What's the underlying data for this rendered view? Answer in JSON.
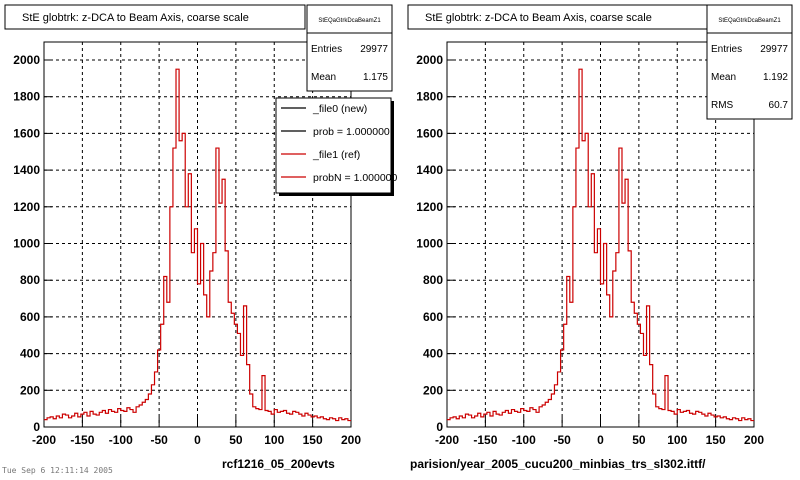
{
  "footer": {
    "left_path": "rcf1216_05_200evts",
    "right_path": "parision/year_2005_cucu200_minbias_trs_sl302.ittf/",
    "tiny_text": "Tue Sep 6 12:11:14 2005"
  },
  "chart_data": [
    {
      "type": "histogram",
      "title": "StE globtrk: z-DCA to Beam Axis, coarse scale",
      "xlim": [
        -200,
        200
      ],
      "ylim": [
        0,
        2000
      ],
      "x_ticks": [
        "-200",
        "-150",
        "-100",
        "-50",
        "0",
        "50",
        "100",
        "150",
        "200"
      ],
      "y_ticks": [
        "0",
        "200",
        "400",
        "600",
        "800",
        "1000",
        "1200",
        "1400",
        "1600",
        "1800",
        "2000"
      ],
      "grid": true,
      "bin_width": 4,
      "x_start": -200,
      "stats": {
        "name": "StEQaGtrkDcaBeamZ1",
        "rows": [
          {
            "label": "Entries",
            "value": "29977"
          },
          {
            "label": "Mean",
            "value": "1.175"
          }
        ]
      },
      "legend": {
        "placement": "top-right",
        "entries": [
          {
            "label": "_file0 (new)",
            "color": "#000000"
          },
          {
            "label": "prob = 1.000000",
            "color": "#000000"
          },
          {
            "label": "_file1 (ref)",
            "color": "#cc0000"
          },
          {
            "label": "probN = 1.000000",
            "color": "#cc0000"
          }
        ]
      },
      "series": [
        {
          "color": "#cc0000",
          "values": [
            40,
            50,
            55,
            45,
            60,
            50,
            70,
            65,
            50,
            60,
            75,
            55,
            70,
            80,
            60,
            85,
            70,
            65,
            80,
            90,
            75,
            95,
            85,
            80,
            100,
            90,
            85,
            105,
            95,
            80,
            110,
            120,
            135,
            150,
            180,
            230,
            300,
            420,
            560,
            820,
            680,
            1200,
            1520,
            1950,
            1560,
            1600,
            1200,
            1380,
            950,
            1080,
            780,
            1000,
            720,
            600,
            850,
            950,
            1520,
            1220,
            1350,
            960,
            680,
            620,
            560,
            510,
            390,
            660,
            340,
            180,
            110,
            100,
            95,
            280,
            90,
            85,
            70,
            95,
            80,
            85,
            90,
            75,
            70,
            85,
            80,
            70,
            60,
            75,
            65,
            55,
            60,
            50,
            55,
            45,
            40,
            50,
            45,
            35,
            50,
            40,
            45,
            35
          ]
        }
      ]
    },
    {
      "type": "histogram",
      "title": "StE globtrk: z-DCA to Beam Axis, coarse scale",
      "xlim": [
        -200,
        200
      ],
      "ylim": [
        0,
        2000
      ],
      "x_ticks": [
        "-200",
        "-150",
        "-100",
        "-50",
        "0",
        "50",
        "100",
        "150",
        "200"
      ],
      "y_ticks": [
        "0",
        "200",
        "400",
        "600",
        "800",
        "1000",
        "1200",
        "1400",
        "1600",
        "1800",
        "2000"
      ],
      "grid": true,
      "bin_width": 4,
      "x_start": -200,
      "stats": {
        "name": "StEQaGtrkDcaBeamZ1",
        "rows": [
          {
            "label": "Entries",
            "value": "29977"
          },
          {
            "label": "Mean",
            "value": "1.192"
          },
          {
            "label": "RMS",
            "value": "60.7"
          }
        ]
      },
      "series": [
        {
          "color": "#cc0000",
          "values": [
            40,
            50,
            55,
            45,
            60,
            50,
            70,
            65,
            50,
            60,
            75,
            55,
            70,
            80,
            60,
            85,
            70,
            65,
            80,
            90,
            75,
            95,
            85,
            80,
            100,
            90,
            85,
            105,
            95,
            80,
            110,
            120,
            135,
            150,
            180,
            230,
            300,
            420,
            560,
            820,
            680,
            1200,
            1520,
            1950,
            1560,
            1600,
            1200,
            1380,
            950,
            1080,
            780,
            1000,
            720,
            600,
            850,
            950,
            1520,
            1220,
            1350,
            960,
            680,
            620,
            560,
            510,
            390,
            660,
            340,
            180,
            110,
            100,
            95,
            280,
            90,
            85,
            70,
            95,
            80,
            85,
            90,
            75,
            70,
            85,
            80,
            70,
            60,
            75,
            65,
            55,
            60,
            50,
            55,
            45,
            40,
            50,
            45,
            35,
            50,
            40,
            45,
            35
          ]
        }
      ]
    }
  ]
}
